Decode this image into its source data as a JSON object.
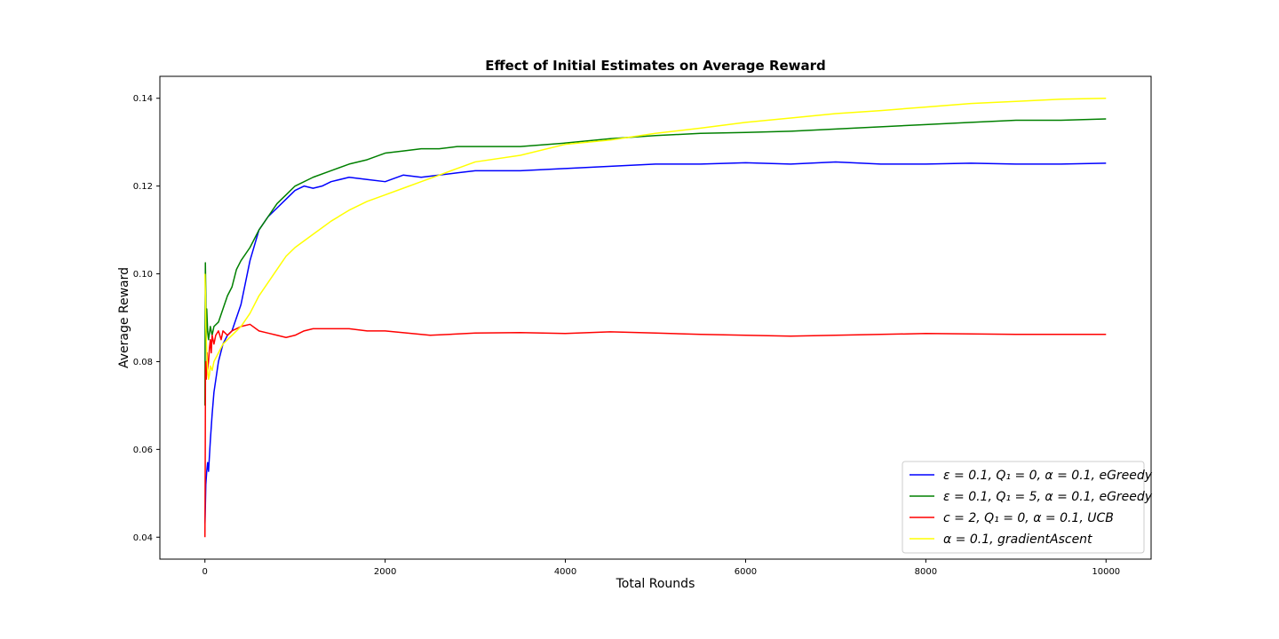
{
  "chart_data": {
    "type": "line",
    "title": "Effect of Initial Estimates on Average Reward",
    "xlabel": "Total Rounds",
    "ylabel": "Average Reward",
    "xlim": [
      -500,
      10500
    ],
    "ylim": [
      0.035,
      0.145
    ],
    "xticks": [
      0,
      2000,
      4000,
      6000,
      8000,
      10000
    ],
    "xtick_labels": [
      "0",
      "2000",
      "4000",
      "6000",
      "8000",
      "10000"
    ],
    "yticks": [
      0.04,
      0.06,
      0.08,
      0.1,
      0.12,
      0.14
    ],
    "ytick_labels": [
      "0.04",
      "0.06",
      "0.08",
      "0.10",
      "0.12",
      "0.14"
    ],
    "grid": false,
    "legend_position": "lower-right",
    "series": [
      {
        "name": "ε = 0.1, Q₁ = 0, α = 0.1, eGreedy",
        "color": "#0000ff",
        "x": [
          0,
          5,
          10,
          20,
          30,
          40,
          60,
          80,
          100,
          150,
          200,
          250,
          300,
          400,
          500,
          600,
          700,
          800,
          900,
          1000,
          1100,
          1200,
          1300,
          1400,
          1600,
          1800,
          2000,
          2200,
          2400,
          2600,
          2800,
          3000,
          3500,
          4000,
          4500,
          5000,
          5500,
          6000,
          6500,
          7000,
          7500,
          8000,
          8500,
          9000,
          9500,
          10000
        ],
        "y": [
          0.043,
          0.047,
          0.052,
          0.055,
          0.057,
          0.055,
          0.062,
          0.068,
          0.073,
          0.08,
          0.084,
          0.086,
          0.087,
          0.093,
          0.103,
          0.11,
          0.113,
          0.115,
          0.117,
          0.119,
          0.12,
          0.1195,
          0.12,
          0.121,
          0.122,
          0.1215,
          0.121,
          0.1225,
          0.122,
          0.1225,
          0.123,
          0.1235,
          0.1235,
          0.124,
          0.1245,
          0.125,
          0.125,
          0.1253,
          0.125,
          0.1255,
          0.125,
          0.125,
          0.1252,
          0.125,
          0.125,
          0.1252
        ]
      },
      {
        "name": "ε = 0.1, Q₁ = 5, α = 0.1, eGreedy",
        "color": "#008000",
        "x": [
          0,
          5,
          10,
          15,
          20,
          30,
          40,
          60,
          80,
          100,
          150,
          200,
          250,
          300,
          350,
          400,
          500,
          600,
          700,
          800,
          900,
          1000,
          1200,
          1400,
          1600,
          1800,
          2000,
          2200,
          2400,
          2600,
          2800,
          3000,
          3500,
          4000,
          4500,
          5000,
          5500,
          6000,
          6500,
          7000,
          7500,
          8000,
          8500,
          9000,
          9500,
          10000
        ],
        "y": [
          0.07,
          0.1025,
          0.095,
          0.085,
          0.092,
          0.087,
          0.085,
          0.088,
          0.086,
          0.088,
          0.089,
          0.092,
          0.095,
          0.097,
          0.101,
          0.103,
          0.106,
          0.11,
          0.113,
          0.116,
          0.118,
          0.12,
          0.122,
          0.1235,
          0.125,
          0.126,
          0.1275,
          0.128,
          0.1285,
          0.1285,
          0.129,
          0.129,
          0.129,
          0.1298,
          0.1308,
          0.1315,
          0.132,
          0.1322,
          0.1325,
          0.133,
          0.1335,
          0.134,
          0.1345,
          0.135,
          0.135,
          0.1353
        ]
      },
      {
        "name": "c = 2, Q₁ = 0, α = 0.1, UCB",
        "color": "#ff0000",
        "x": [
          0,
          3,
          6,
          10,
          15,
          20,
          25,
          30,
          40,
          50,
          60,
          70,
          80,
          100,
          120,
          150,
          180,
          200,
          250,
          300,
          400,
          500,
          600,
          700,
          800,
          900,
          1000,
          1100,
          1200,
          1400,
          1600,
          1800,
          2000,
          2500,
          3000,
          3500,
          4000,
          4500,
          5000,
          5500,
          6000,
          6500,
          7000,
          7500,
          8000,
          8500,
          9000,
          9500,
          10000
        ],
        "y": [
          0.04,
          0.055,
          0.078,
          0.08,
          0.076,
          0.079,
          0.082,
          0.078,
          0.08,
          0.083,
          0.085,
          0.082,
          0.086,
          0.084,
          0.086,
          0.087,
          0.085,
          0.087,
          0.086,
          0.087,
          0.088,
          0.0885,
          0.087,
          0.0865,
          0.086,
          0.0855,
          0.086,
          0.087,
          0.0875,
          0.0875,
          0.0875,
          0.087,
          0.087,
          0.086,
          0.0865,
          0.0866,
          0.0864,
          0.0868,
          0.0865,
          0.0862,
          0.086,
          0.0858,
          0.086,
          0.0862,
          0.0864,
          0.0863,
          0.0862,
          0.0862,
          0.0862
        ]
      },
      {
        "name": "α = 0.1, gradientAscent",
        "color": "#ffff00",
        "x": [
          0,
          5,
          10,
          20,
          30,
          40,
          50,
          60,
          80,
          100,
          150,
          200,
          250,
          300,
          400,
          500,
          600,
          700,
          800,
          900,
          1000,
          1200,
          1400,
          1600,
          1800,
          2000,
          2200,
          2400,
          2600,
          2800,
          3000,
          3500,
          4000,
          4500,
          5000,
          5500,
          6000,
          6500,
          7000,
          7500,
          8000,
          8500,
          9000,
          9500,
          10000
        ],
        "y": [
          0.1,
          0.096,
          0.088,
          0.082,
          0.078,
          0.076,
          0.077,
          0.079,
          0.078,
          0.08,
          0.082,
          0.084,
          0.085,
          0.086,
          0.088,
          0.091,
          0.095,
          0.098,
          0.101,
          0.104,
          0.106,
          0.109,
          0.112,
          0.1145,
          0.1165,
          0.118,
          0.1195,
          0.121,
          0.1225,
          0.124,
          0.1255,
          0.127,
          0.1295,
          0.1305,
          0.132,
          0.1332,
          0.1345,
          0.1355,
          0.1365,
          0.1372,
          0.138,
          0.1388,
          0.1393,
          0.1398,
          0.14
        ]
      }
    ]
  }
}
